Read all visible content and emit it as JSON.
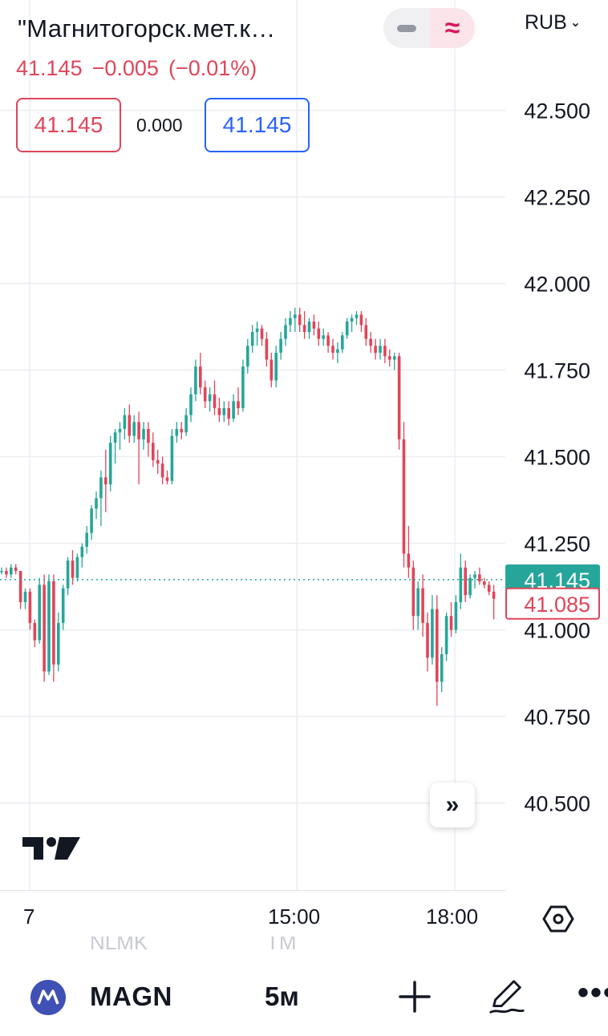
{
  "header": {
    "title": "\"Магнитогорск.мет.к…",
    "currency": "RUB",
    "last_price": "41.145",
    "change": "−0.005",
    "change_pct": "(−0.01%)",
    "sell_price": "41.145",
    "spread": "0.000",
    "buy_price": "41.145"
  },
  "colors": {
    "up": "#26a69a",
    "down": "#e04559",
    "accent": "#2962ff",
    "grid": "#eceef2"
  },
  "chart_data": {
    "type": "candlestick",
    "y_ticks": [
      "42.500",
      "42.250",
      "42.000",
      "41.750",
      "41.500",
      "41.250",
      "41.000",
      "40.750",
      "40.500"
    ],
    "ylim": [
      40.35,
      42.7
    ],
    "x_labels": [
      "7",
      "15:00",
      "18:00"
    ],
    "last_price_label": "41.145",
    "secondary_price_label": "41.085",
    "ohlc": [
      [
        41.17,
        41.18,
        41.16,
        41.17
      ],
      [
        41.17,
        41.18,
        41.15,
        41.16
      ],
      [
        41.16,
        41.19,
        41.15,
        41.18
      ],
      [
        41.18,
        41.19,
        41.16,
        41.17
      ],
      [
        41.17,
        41.17,
        41.06,
        41.08
      ],
      [
        41.08,
        41.12,
        41.06,
        41.11
      ],
      [
        41.11,
        41.12,
        41.0,
        41.02
      ],
      [
        41.02,
        41.03,
        40.95,
        40.97
      ],
      [
        40.97,
        41.15,
        40.96,
        41.13
      ],
      [
        41.13,
        41.16,
        40.85,
        40.88
      ],
      [
        40.88,
        41.16,
        40.87,
        41.14
      ],
      [
        41.14,
        41.16,
        40.85,
        40.9
      ],
      [
        40.9,
        41.05,
        40.88,
        41.02
      ],
      [
        41.02,
        41.13,
        41.0,
        41.12
      ],
      [
        41.12,
        41.21,
        41.1,
        41.2
      ],
      [
        41.2,
        41.23,
        41.13,
        41.15
      ],
      [
        41.15,
        41.22,
        41.14,
        41.21
      ],
      [
        41.21,
        41.25,
        41.18,
        41.24
      ],
      [
        41.24,
        41.3,
        41.22,
        41.28
      ],
      [
        41.28,
        41.36,
        41.26,
        41.35
      ],
      [
        41.35,
        41.4,
        41.32,
        41.38
      ],
      [
        41.38,
        41.46,
        41.3,
        41.44
      ],
      [
        41.44,
        41.52,
        41.34,
        41.42
      ],
      [
        41.42,
        41.56,
        41.4,
        41.54
      ],
      [
        41.54,
        41.58,
        41.48,
        41.57
      ],
      [
        41.57,
        41.6,
        41.52,
        41.58
      ],
      [
        41.58,
        41.64,
        41.55,
        41.62
      ],
      [
        41.62,
        41.65,
        41.54,
        41.56
      ],
      [
        41.56,
        41.62,
        41.54,
        41.6
      ],
      [
        41.6,
        41.63,
        41.42,
        41.55
      ],
      [
        41.55,
        41.6,
        41.52,
        41.58
      ],
      [
        41.58,
        41.6,
        41.5,
        41.54
      ],
      [
        41.54,
        41.57,
        41.47,
        41.49
      ],
      [
        41.49,
        41.52,
        41.45,
        41.48
      ],
      [
        41.48,
        41.5,
        41.42,
        41.44
      ],
      [
        41.44,
        41.46,
        41.42,
        41.43
      ],
      [
        41.43,
        41.58,
        41.42,
        41.56
      ],
      [
        41.56,
        41.6,
        41.54,
        41.58
      ],
      [
        41.58,
        41.6,
        41.55,
        41.57
      ],
      [
        41.57,
        41.64,
        41.56,
        41.62
      ],
      [
        41.62,
        41.7,
        41.6,
        41.68
      ],
      [
        41.68,
        41.78,
        41.66,
        41.76
      ],
      [
        41.76,
        41.8,
        41.68,
        41.7
      ],
      [
        41.7,
        41.72,
        41.64,
        41.66
      ],
      [
        41.66,
        41.7,
        41.63,
        41.68
      ],
      [
        41.68,
        41.72,
        41.62,
        41.64
      ],
      [
        41.64,
        41.67,
        41.6,
        41.62
      ],
      [
        41.62,
        41.66,
        41.6,
        41.64
      ],
      [
        41.64,
        41.66,
        41.59,
        41.61
      ],
      [
        41.61,
        41.68,
        41.6,
        41.66
      ],
      [
        41.66,
        41.7,
        41.62,
        41.64
      ],
      [
        41.64,
        41.78,
        41.63,
        41.76
      ],
      [
        41.76,
        41.84,
        41.74,
        41.82
      ],
      [
        41.82,
        41.88,
        41.8,
        41.86
      ],
      [
        41.86,
        41.89,
        41.82,
        41.87
      ],
      [
        41.87,
        41.88,
        41.82,
        41.84
      ],
      [
        41.84,
        41.86,
        41.76,
        41.78
      ],
      [
        41.78,
        41.8,
        41.7,
        41.72
      ],
      [
        41.72,
        41.82,
        41.7,
        41.8
      ],
      [
        41.8,
        41.86,
        41.78,
        41.84
      ],
      [
        41.84,
        41.9,
        41.82,
        41.88
      ],
      [
        41.88,
        41.92,
        41.86,
        41.9
      ],
      [
        41.9,
        41.93,
        41.86,
        41.91
      ],
      [
        41.91,
        41.93,
        41.86,
        41.88
      ],
      [
        41.88,
        41.92,
        41.84,
        41.86
      ],
      [
        41.86,
        41.9,
        41.84,
        41.89
      ],
      [
        41.89,
        41.91,
        41.85,
        41.87
      ],
      [
        41.87,
        41.89,
        41.82,
        41.84
      ],
      [
        41.84,
        41.87,
        41.82,
        41.85
      ],
      [
        41.85,
        41.86,
        41.8,
        41.82
      ],
      [
        41.82,
        41.84,
        41.78,
        41.8
      ],
      [
        41.8,
        41.83,
        41.77,
        41.81
      ],
      [
        41.81,
        41.86,
        41.8,
        41.85
      ],
      [
        41.85,
        41.9,
        41.84,
        41.89
      ],
      [
        41.89,
        41.91,
        41.86,
        41.9
      ],
      [
        41.9,
        41.92,
        41.88,
        41.91
      ],
      [
        41.91,
        41.92,
        41.86,
        41.88
      ],
      [
        41.88,
        41.9,
        41.82,
        41.84
      ],
      [
        41.84,
        41.86,
        41.8,
        41.82
      ],
      [
        41.82,
        41.84,
        41.78,
        41.8
      ],
      [
        41.8,
        41.84,
        41.78,
        41.82
      ],
      [
        41.82,
        41.84,
        41.77,
        41.79
      ],
      [
        41.79,
        41.81,
        41.76,
        41.78
      ],
      [
        41.78,
        41.8,
        41.75,
        41.79
      ],
      [
        41.79,
        41.8,
        41.52,
        41.55
      ],
      [
        41.55,
        41.6,
        41.18,
        41.22
      ],
      [
        41.22,
        41.3,
        41.15,
        41.18
      ],
      [
        41.18,
        41.2,
        41.0,
        41.04
      ],
      [
        41.04,
        41.14,
        41.0,
        41.12
      ],
      [
        41.12,
        41.16,
        40.98,
        41.02
      ],
      [
        41.02,
        41.05,
        40.88,
        40.92
      ],
      [
        40.92,
        41.1,
        40.9,
        41.06
      ],
      [
        41.06,
        41.1,
        40.78,
        40.85
      ],
      [
        40.85,
        40.95,
        40.82,
        40.93
      ],
      [
        40.93,
        41.05,
        40.91,
        41.04
      ],
      [
        41.04,
        41.08,
        40.98,
        41.0
      ],
      [
        41.0,
        41.1,
        40.99,
        41.08
      ],
      [
        41.08,
        41.22,
        41.06,
        41.18
      ],
      [
        41.18,
        41.2,
        41.08,
        41.1
      ],
      [
        41.1,
        41.16,
        41.09,
        41.15
      ],
      [
        41.15,
        41.17,
        41.12,
        41.16
      ],
      [
        41.16,
        41.18,
        41.13,
        41.14
      ],
      [
        41.14,
        41.15,
        41.12,
        41.13
      ],
      [
        41.13,
        41.14,
        41.1,
        41.11
      ],
      [
        41.11,
        41.13,
        41.03,
        41.09
      ]
    ]
  },
  "bottombar": {
    "symbol": "MAGN",
    "timeframe": "5м",
    "ghost_left": "NLMK",
    "ghost_mid": "TM"
  }
}
